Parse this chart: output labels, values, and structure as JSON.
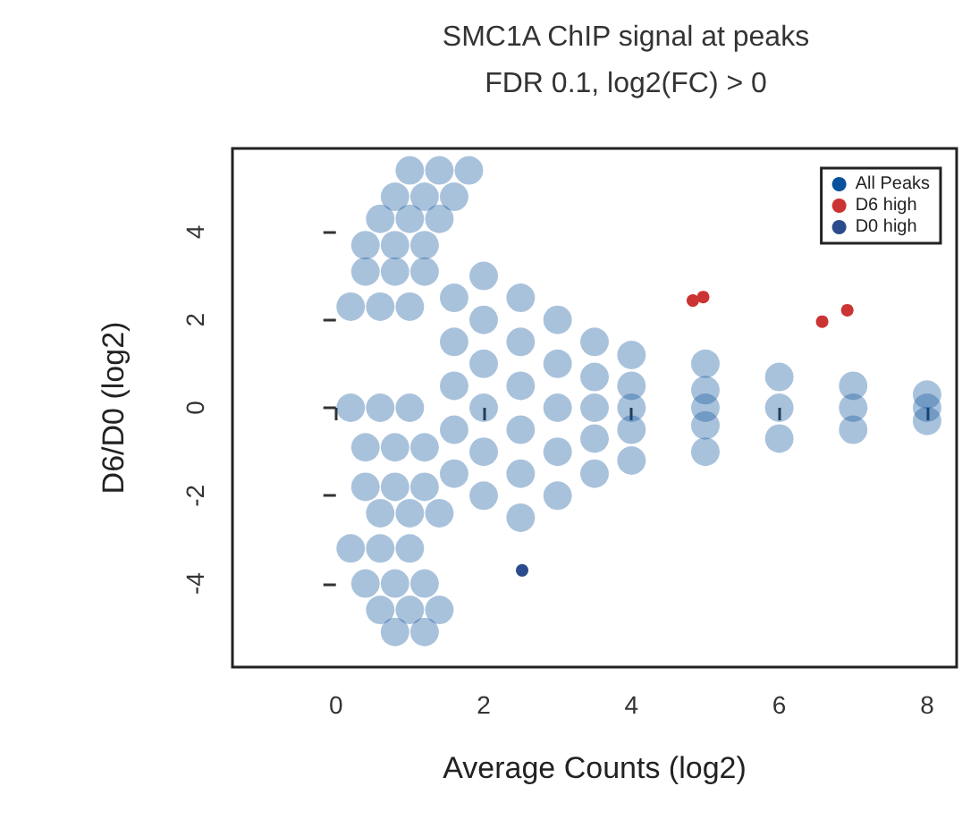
{
  "chart_data": {
    "type": "scatter",
    "title": "SMC1A ChIP signal at peaks",
    "subtitle": "FDR 0.1, log2(FC) > 0",
    "xlabel": "Average Counts (log2)",
    "ylabel": "D6/D0 (log2)",
    "xlim": [
      -1.4,
      8.4
    ],
    "ylim": [
      -5.9,
      5.9
    ],
    "xticks": [
      0,
      2,
      4,
      6,
      8
    ],
    "yticks": [
      -4,
      -2,
      0,
      2,
      4
    ],
    "grid": false,
    "legend": "top right",
    "marker": "circle",
    "series": [
      {
        "name": "All Peaks",
        "color": "#08519c",
        "x": [
          1.0,
          1.4,
          1.8,
          0.8,
          1.2,
          1.6,
          0.6,
          1.0,
          1.4,
          0.4,
          0.8,
          1.2,
          0.4,
          0.8,
          1.2,
          0.2,
          0.6,
          1.0,
          0.2,
          0.6,
          1.0,
          0.4,
          0.8,
          1.2,
          0.4,
          0.8,
          1.2,
          0.6,
          1.0,
          1.4,
          0.2,
          0.6,
          1.0,
          0.4,
          0.8,
          1.2,
          0.6,
          1.0,
          1.4,
          0.8,
          1.2,
          1.6,
          1.6,
          1.6,
          1.6,
          1.6,
          2.0,
          2.0,
          2.0,
          2.0,
          2.0,
          2.0,
          2.5,
          2.5,
          2.5,
          2.5,
          2.5,
          2.5,
          3.0,
          3.0,
          3.0,
          3.0,
          3.0,
          3.5,
          3.5,
          3.5,
          3.5,
          3.5,
          4.0,
          4.0,
          4.0,
          4.0,
          4.0,
          5.0,
          5.0,
          5.0,
          5.0,
          5.0,
          6.0,
          6.0,
          6.0,
          7.0,
          7.0,
          7.0,
          8.0,
          8.0,
          8.0
        ],
        "values": [
          5.4,
          5.4,
          5.4,
          4.8,
          4.8,
          4.8,
          4.3,
          4.3,
          4.3,
          3.7,
          3.7,
          3.7,
          3.1,
          3.1,
          3.1,
          2.3,
          2.3,
          2.3,
          0.0,
          0.0,
          0.0,
          -0.9,
          -0.9,
          -0.9,
          -1.8,
          -1.8,
          -1.8,
          -2.4,
          -2.4,
          -2.4,
          -3.2,
          -3.2,
          -3.2,
          -4.0,
          -4.0,
          -4.0,
          -4.6,
          -4.6,
          -4.6,
          -5.1,
          -5.1,
          2.5,
          1.5,
          0.5,
          -0.5,
          -1.5,
          3.0,
          2.0,
          1.0,
          0,
          -1.0,
          -2.0,
          2.5,
          1.5,
          0.5,
          -0.5,
          -1.5,
          -2.5,
          2.0,
          1.0,
          0,
          -1.0,
          -2.0,
          1.5,
          0.7,
          0,
          -0.7,
          -1.5,
          1.2,
          0.5,
          0,
          -0.5,
          -1.2,
          1.0,
          0.4,
          0,
          -0.4,
          -1.0,
          0.7,
          0,
          -0.7,
          0.5,
          0,
          -0.5,
          0.3,
          0,
          -0.3
        ]
      },
      {
        "name": "D6 high",
        "color": "#cc3333",
        "x": [
          4.83,
          4.97,
          6.58,
          6.92
        ],
        "values": [
          2.44,
          2.52,
          1.96,
          2.22
        ]
      },
      {
        "name": "D0 high",
        "color": "#2b4c8c",
        "x": [
          2.52
        ],
        "values": [
          -3.7
        ]
      }
    ]
  }
}
